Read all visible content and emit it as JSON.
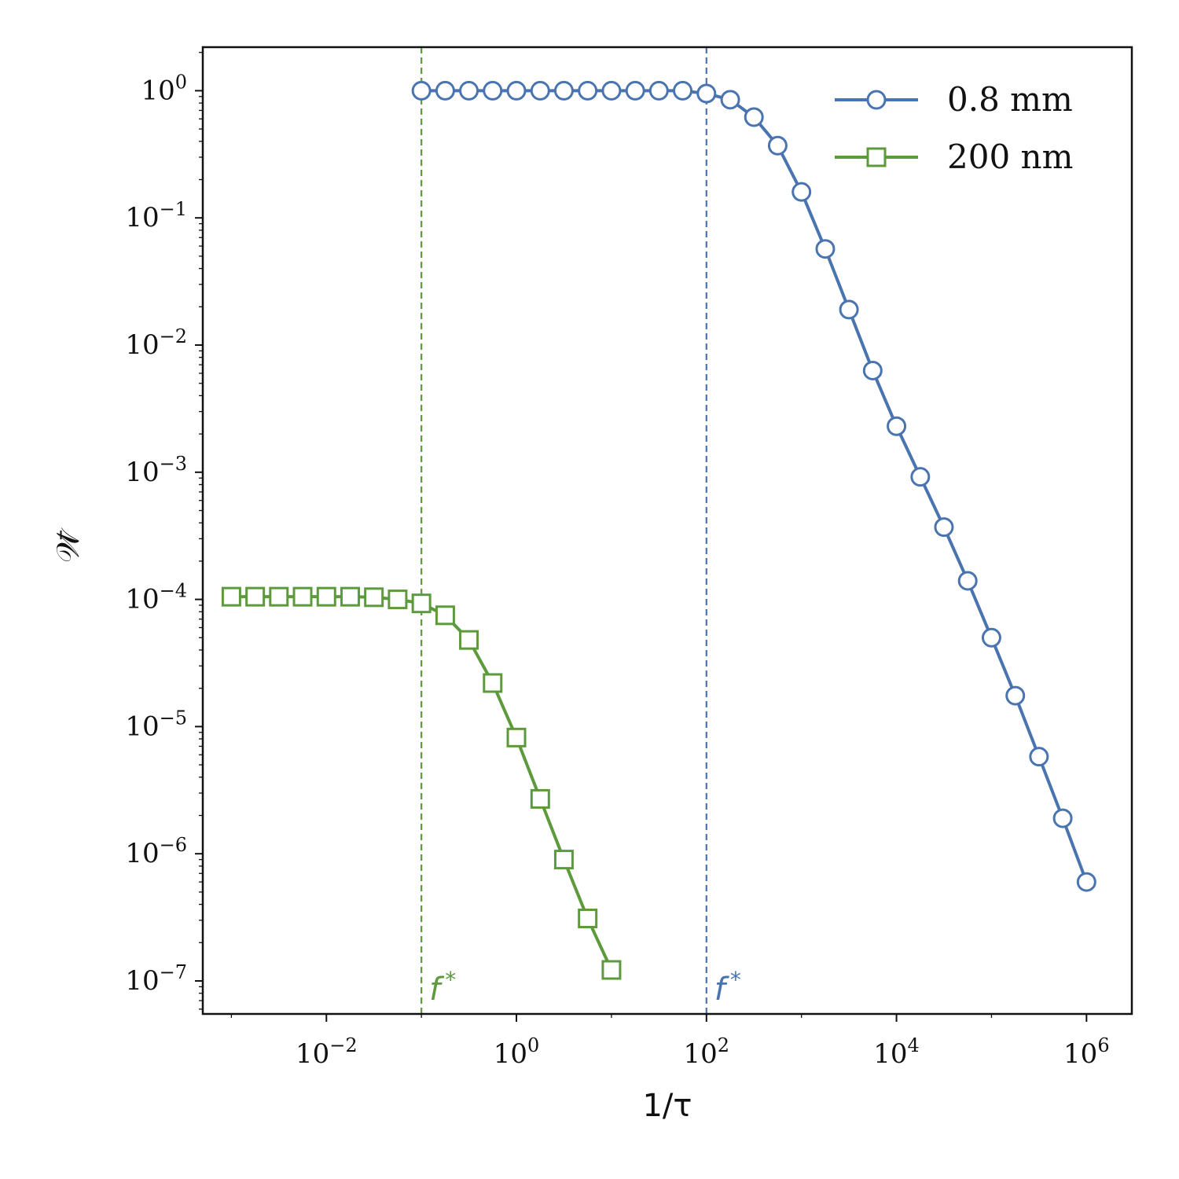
{
  "chart_data": {
    "type": "line",
    "xlabel": "1/τ",
    "ylabel": "𝒲̄",
    "xscale": "log",
    "yscale": "log",
    "xlim": [
      0.0005,
      3000000
    ],
    "ylim": [
      5.5e-08,
      2.2
    ],
    "x_ticks": [
      {
        "value": 0.01,
        "base": "10",
        "exp": "−2"
      },
      {
        "value": 1,
        "base": "10",
        "exp": "0"
      },
      {
        "value": 100,
        "base": "10",
        "exp": "2"
      },
      {
        "value": 10000,
        "base": "10",
        "exp": "4"
      },
      {
        "value": 1000000,
        "base": "10",
        "exp": "6"
      }
    ],
    "y_ticks": [
      {
        "value": 1,
        "base": "10",
        "exp": "0"
      },
      {
        "value": 0.1,
        "base": "10",
        "exp": "−1"
      },
      {
        "value": 0.01,
        "base": "10",
        "exp": "−2"
      },
      {
        "value": 0.001,
        "base": "10",
        "exp": "−3"
      },
      {
        "value": 0.0001,
        "base": "10",
        "exp": "−4"
      },
      {
        "value": 1e-05,
        "base": "10",
        "exp": "−5"
      },
      {
        "value": 1e-06,
        "base": "10",
        "exp": "−6"
      },
      {
        "value": 1e-07,
        "base": "10",
        "exp": "−7"
      }
    ],
    "grid": false,
    "legend_position": "top-right",
    "series": [
      {
        "name": "0.8 mm",
        "color": "#4a74b0",
        "marker": "circle",
        "x": [
          0.1,
          0.178,
          0.316,
          0.562,
          1,
          1.78,
          3.16,
          5.62,
          10,
          17.8,
          31.6,
          56.2,
          100,
          178,
          316,
          562,
          1000,
          1780,
          3160,
          5620,
          10000,
          17800,
          31600,
          56200,
          100000,
          178000,
          316000,
          562000,
          1000000
        ],
        "y": [
          1.0,
          1.0,
          1.0,
          1.0,
          1.0,
          1.0,
          1.0,
          1.0,
          1.0,
          1.0,
          1.0,
          1.0,
          0.95,
          0.85,
          0.62,
          0.37,
          0.16,
          0.057,
          0.019,
          0.0063,
          0.0023,
          0.00092,
          0.00037,
          0.00014,
          5e-05,
          1.75e-05,
          5.8e-06,
          1.9e-06,
          6e-07
        ]
      },
      {
        "name": "200 nm",
        "color": "#5c9a3c",
        "marker": "square",
        "x": [
          0.001,
          0.00178,
          0.00316,
          0.00562,
          0.01,
          0.0178,
          0.0316,
          0.0562,
          0.1,
          0.178,
          0.316,
          0.562,
          1,
          1.78,
          3.16,
          5.62,
          10
        ],
        "y": [
          0.000105,
          0.000105,
          0.000105,
          0.000105,
          0.000105,
          0.000105,
          0.000104,
          0.0001,
          9.3e-05,
          7.5e-05,
          4.8e-05,
          2.2e-05,
          8.2e-06,
          2.7e-06,
          9e-07,
          3.1e-07,
          1.22e-07
        ]
      }
    ],
    "annotations": [
      {
        "type": "vline",
        "x": 0.1,
        "color": "#5c9a3c",
        "label": "f",
        "label_sup": "*"
      },
      {
        "type": "vline",
        "x": 100,
        "color": "#4a74b0",
        "label": "f",
        "label_sup": "*"
      }
    ]
  }
}
